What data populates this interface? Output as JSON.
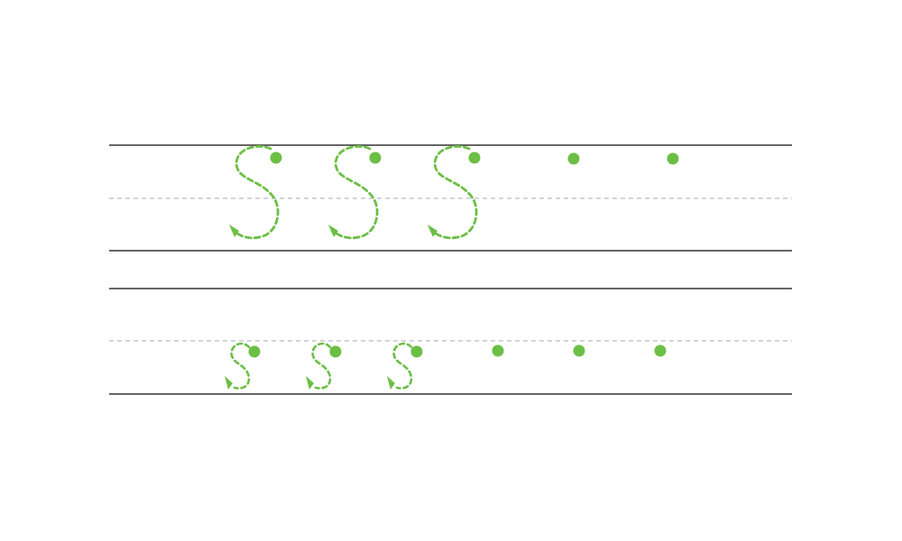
{
  "worksheet": {
    "letter_upper": "S",
    "letter_lower": "s",
    "colors": {
      "guide_solid": "#333333",
      "guide_dashed": "#bbbbbb",
      "trace_green": "#6cbf45"
    },
    "rows": [
      {
        "case": "uppercase",
        "traced_letters": 3,
        "start_dots_only": 2
      },
      {
        "case": "lowercase",
        "traced_letters": 3,
        "start_dots_only": 3
      }
    ]
  }
}
